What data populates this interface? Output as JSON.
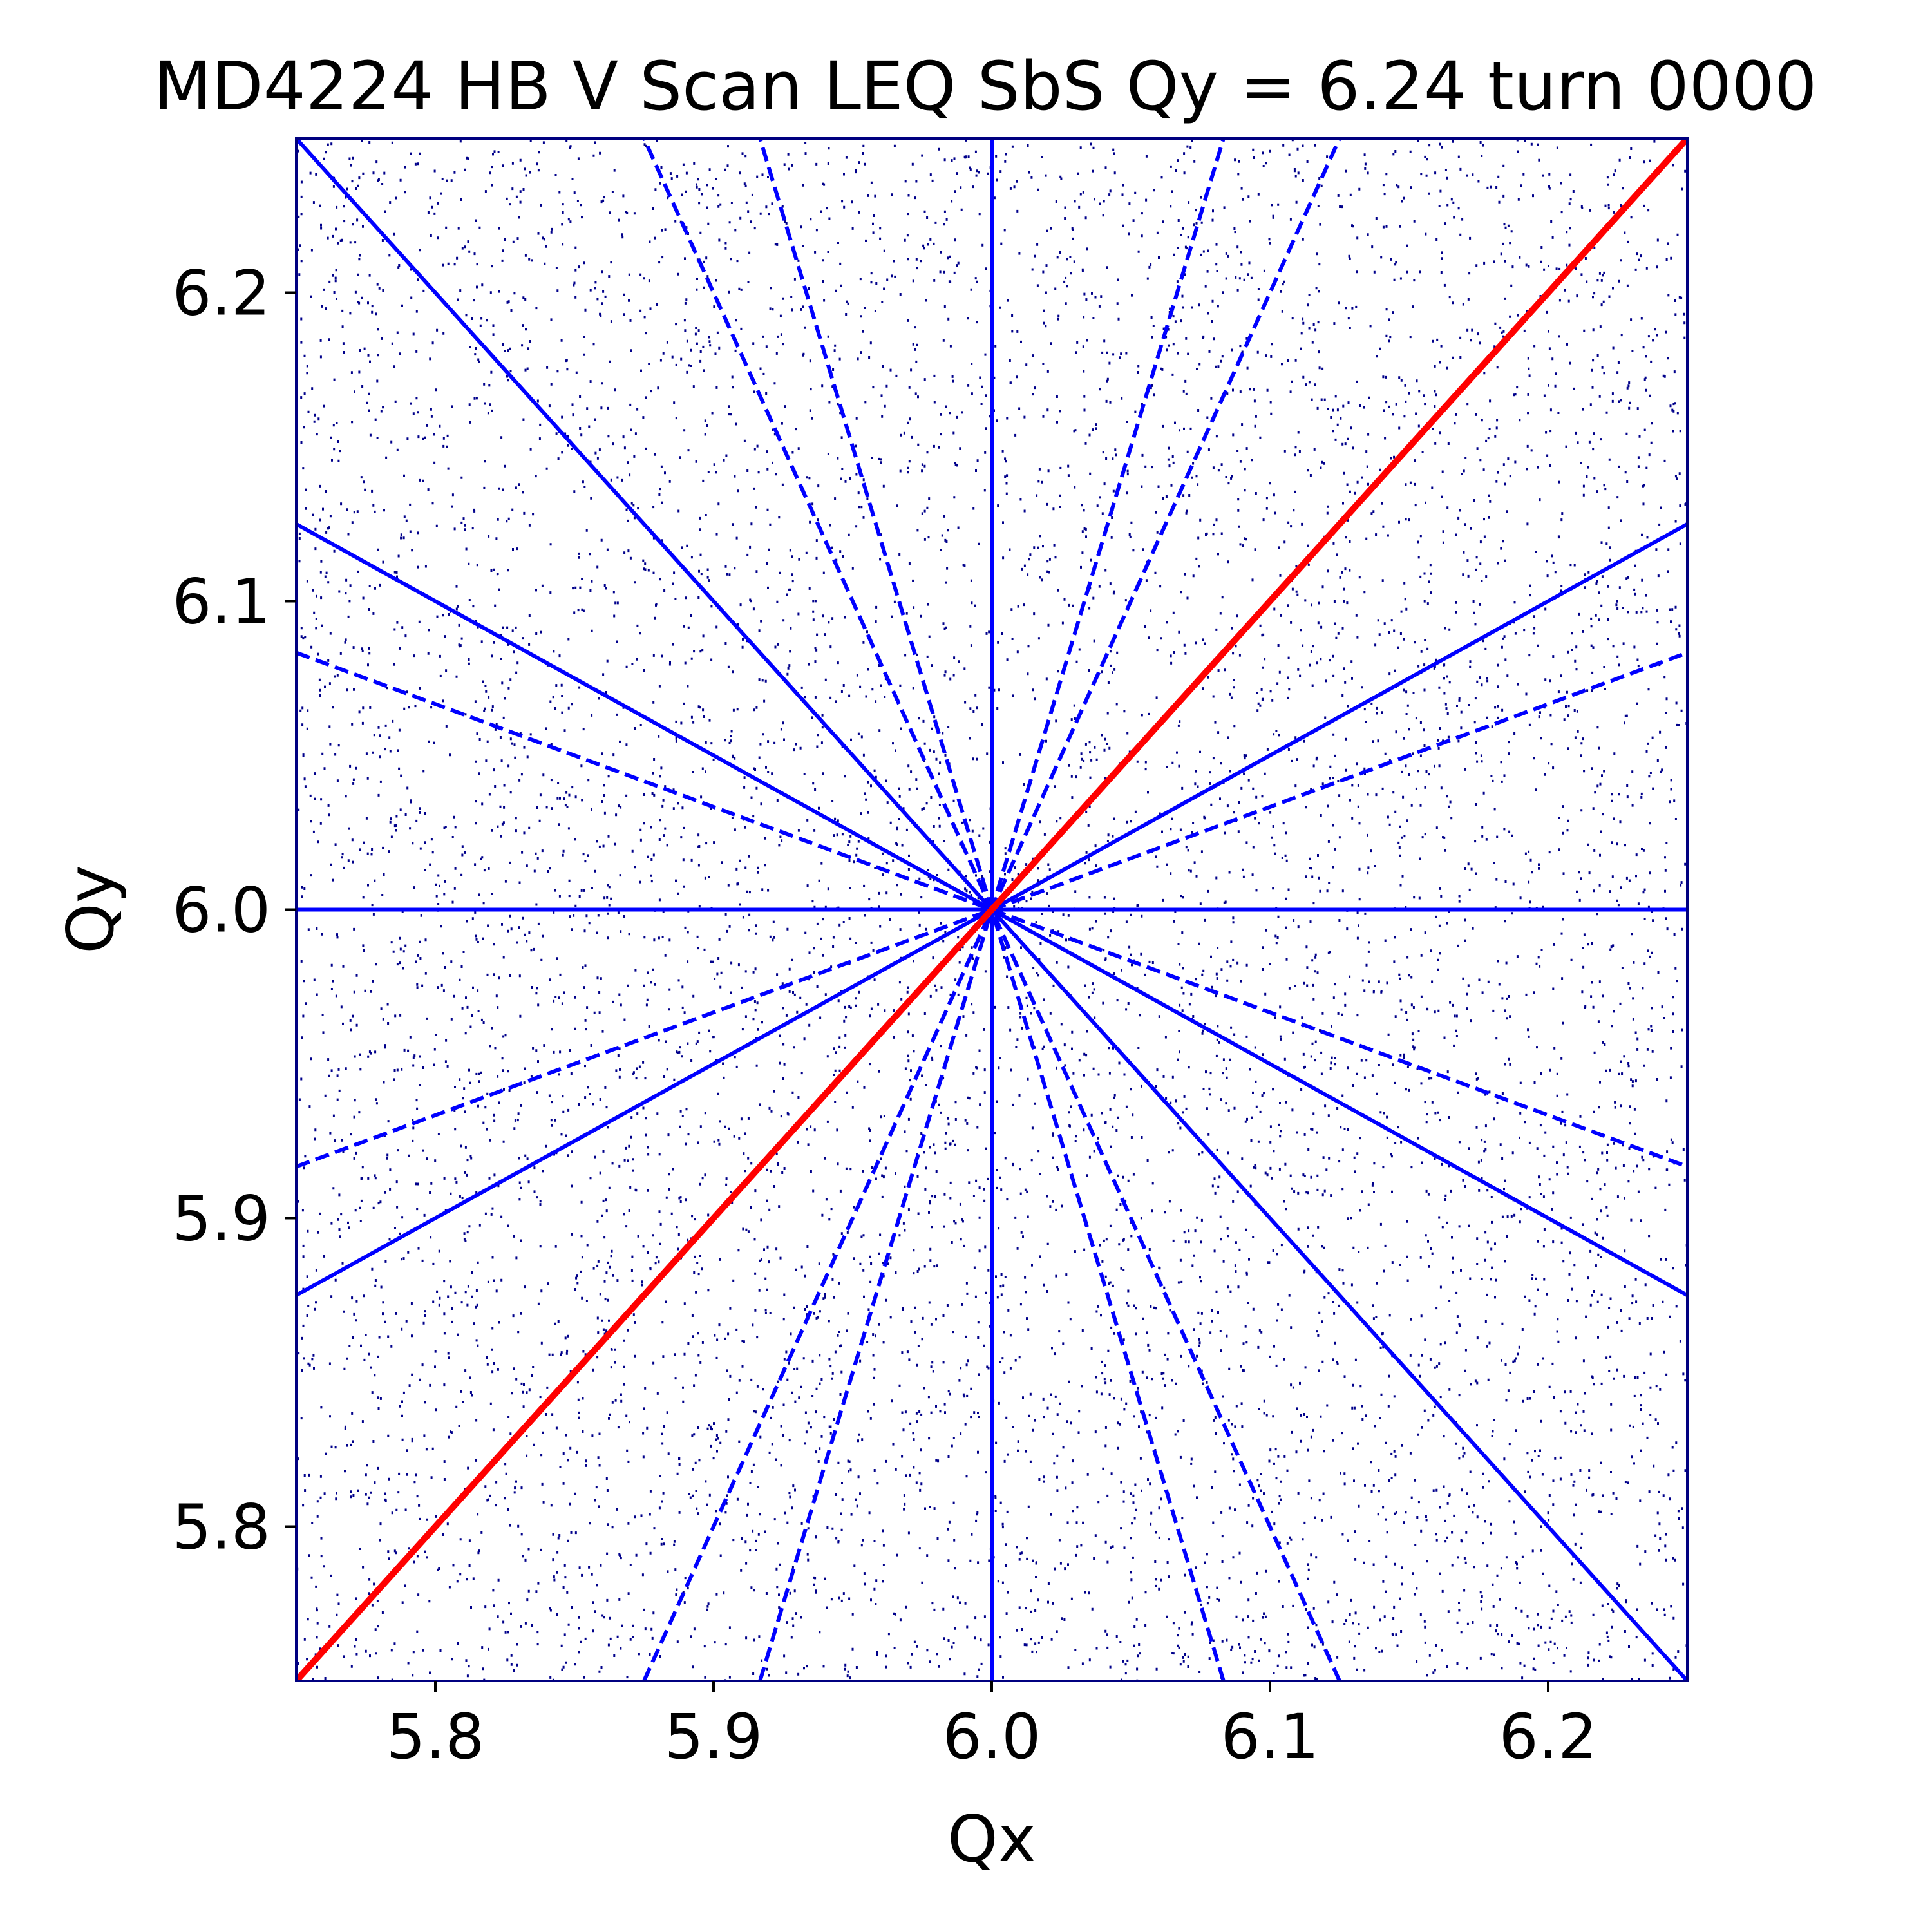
{
  "chart_data": {
    "type": "scatter",
    "title": "MD4224 HB V Scan LEQ SbS Qy = 6.24 turn 0000",
    "xlabel": "Qx",
    "ylabel": "Qy",
    "xlim": [
      5.75,
      6.25
    ],
    "ylim": [
      5.75,
      6.25
    ],
    "xticks": [
      5.8,
      5.9,
      6.0,
      6.1,
      6.2
    ],
    "yticks": [
      5.8,
      5.9,
      6.0,
      6.1,
      6.2
    ],
    "xtick_labels": [
      "5.8",
      "5.9",
      "6.0",
      "6.1",
      "6.2"
    ],
    "ytick_labels": [
      "5.8",
      "5.9",
      "6.0",
      "6.1",
      "6.2"
    ],
    "grid": false,
    "background_points": {
      "description": "dense uniformly scattered tune footprint points",
      "color": "#00008b",
      "count": 14000,
      "xlim": [
        5.75,
        6.25
      ],
      "ylim": [
        5.75,
        6.25
      ]
    },
    "resonance_center": [
      6.0,
      6.0
    ],
    "resonance_lines": [
      {
        "name": "Qx = 6",
        "style": "solid",
        "color": "#0000ff",
        "points": [
          [
            6.0,
            5.75
          ],
          [
            6.0,
            6.25
          ]
        ]
      },
      {
        "name": "Qy = 6",
        "style": "solid",
        "color": "#0000ff",
        "points": [
          [
            5.75,
            6.0
          ],
          [
            6.25,
            6.0
          ]
        ]
      },
      {
        "name": "Qx + Qy = 12",
        "style": "solid",
        "color": "#0000ff",
        "points": [
          [
            5.75,
            6.25
          ],
          [
            6.25,
            5.75
          ]
        ]
      },
      {
        "name": "Qx - 2Qy = -6",
        "style": "solid",
        "color": "#0000ff",
        "points": [
          [
            5.75,
            5.875
          ],
          [
            6.25,
            6.125
          ]
        ]
      },
      {
        "name": "Qx + 2Qy = 18",
        "style": "solid",
        "color": "#0000ff",
        "points": [
          [
            5.75,
            6.125
          ],
          [
            6.25,
            5.875
          ]
        ]
      },
      {
        "name": "Qx - 3Qy = -12",
        "style": "dashed",
        "color": "#0000ff",
        "points": [
          [
            5.75,
            5.9167
          ],
          [
            6.25,
            6.0833
          ]
        ]
      },
      {
        "name": "Qx + 3Qy = 24",
        "style": "dashed",
        "color": "#0000ff",
        "points": [
          [
            5.75,
            6.0833
          ],
          [
            6.25,
            5.9167
          ]
        ]
      },
      {
        "name": "2Qx - Qy = 6",
        "style": "dashed",
        "color": "#0000ff",
        "points": [
          [
            5.875,
            5.75
          ],
          [
            6.125,
            6.25
          ]
        ]
      },
      {
        "name": "2Qx + Qy = 18",
        "style": "dashed",
        "color": "#0000ff",
        "points": [
          [
            6.125,
            5.75
          ],
          [
            5.875,
            6.25
          ]
        ]
      },
      {
        "name": "3Qx - Qy = 12",
        "style": "dashed",
        "color": "#0000ff",
        "points": [
          [
            5.9167,
            5.75
          ],
          [
            6.0833,
            6.25
          ]
        ]
      },
      {
        "name": "3Qx + Qy = 24",
        "style": "dashed",
        "color": "#0000ff",
        "points": [
          [
            6.0833,
            5.75
          ],
          [
            5.9167,
            6.25
          ]
        ]
      },
      {
        "name": "Qx - Qy = 0",
        "style": "solid-thick",
        "color": "#ff0000",
        "points": [
          [
            5.75,
            5.75
          ],
          [
            6.25,
            6.25
          ]
        ]
      }
    ]
  }
}
